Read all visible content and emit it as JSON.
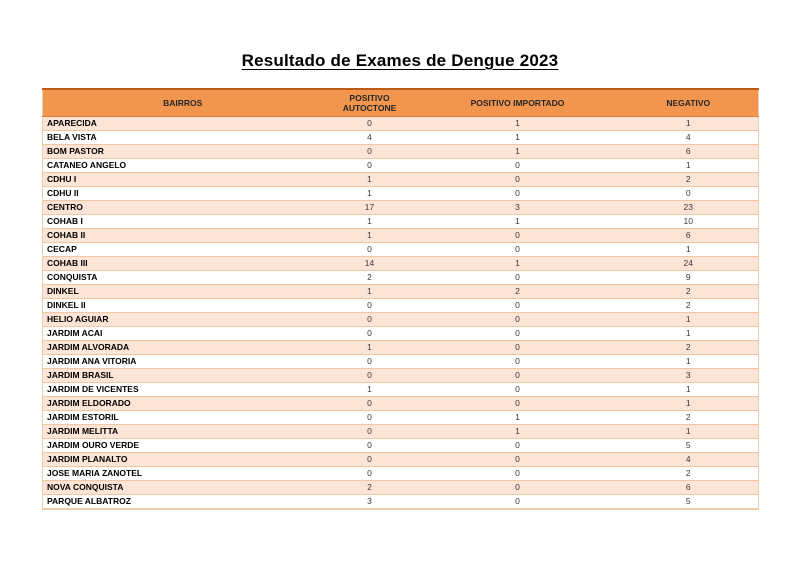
{
  "page": {
    "title": "Resultado de Exames de Dengue 2023"
  },
  "table": {
    "columns": [
      {
        "label": "BAIRROS"
      },
      {
        "label": "POSITIVO AUTOCTONE"
      },
      {
        "label": "POSITIVO IMPORTADO"
      },
      {
        "label": "NEGATIVO"
      }
    ],
    "rows": [
      [
        "APARECIDA",
        0,
        1,
        1
      ],
      [
        "BELA VISTA",
        4,
        1,
        4
      ],
      [
        "BOM PASTOR",
        0,
        1,
        6
      ],
      [
        "CATANEO ANGELO",
        0,
        0,
        1
      ],
      [
        "CDHU I",
        1,
        0,
        2
      ],
      [
        "CDHU II",
        1,
        0,
        0
      ],
      [
        "CENTRO",
        17,
        3,
        23
      ],
      [
        "COHAB I",
        1,
        1,
        10
      ],
      [
        "COHAB II",
        1,
        0,
        6
      ],
      [
        "CECAP",
        0,
        0,
        1
      ],
      [
        "COHAB III",
        14,
        1,
        24
      ],
      [
        "CONQUISTA",
        2,
        0,
        9
      ],
      [
        "DINKEL",
        1,
        2,
        2
      ],
      [
        "DINKEL II",
        0,
        0,
        2
      ],
      [
        "HELIO AGUIAR",
        0,
        0,
        1
      ],
      [
        "JARDIM ACAI",
        0,
        0,
        1
      ],
      [
        "JARDIM ALVORADA",
        1,
        0,
        2
      ],
      [
        "JARDIM ANA VITORIA",
        0,
        0,
        1
      ],
      [
        "JARDIM BRASIL",
        0,
        0,
        3
      ],
      [
        "JARDIM DE VICENTES",
        1,
        0,
        1
      ],
      [
        "JARDIM ELDORADO",
        0,
        0,
        1
      ],
      [
        "JARDIM ESTORIL",
        0,
        1,
        2
      ],
      [
        "JARDIM MELITTA",
        0,
        1,
        1
      ],
      [
        "JARDIM OURO VERDE",
        0,
        0,
        5
      ],
      [
        "JARDIM PLANALTO",
        0,
        0,
        4
      ],
      [
        "JOSE MARIA ZANOTEL",
        0,
        0,
        2
      ],
      [
        "NOVA CONQUISTA",
        2,
        0,
        6
      ],
      [
        "PARQUE ALBATROZ",
        3,
        0,
        5
      ]
    ]
  },
  "colors": {
    "header_bg": "#F2964F",
    "header_text": "#262626",
    "row_alt_bg": "#FCE4D6",
    "row_bg": "#FFFFFF",
    "row_border": "#F2C6A3",
    "table_top_border": "#BE5A17",
    "header_bottom_border": "#DD7E3E",
    "table_outer_border": "#EFCDB0"
  }
}
